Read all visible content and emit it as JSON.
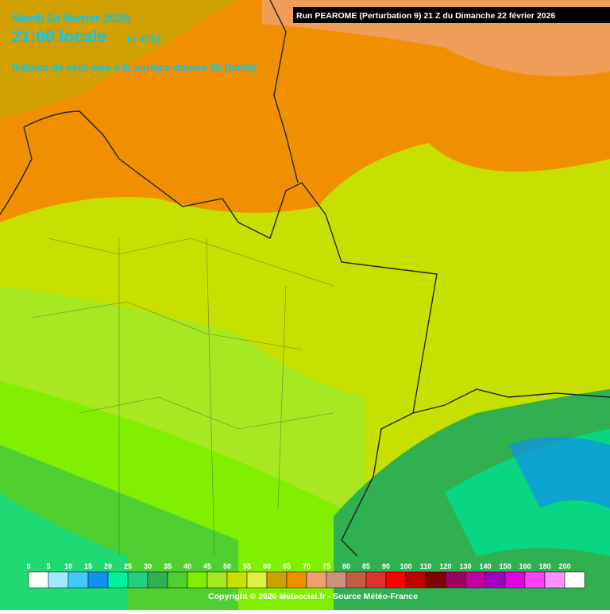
{
  "header": {
    "date": "Mardi 24 février 2026",
    "time": "21:00 locale",
    "offset": "(+ 47h)",
    "subtitle": "Rafales de vent max à la surface depuis 0h (km/h)",
    "run": "Run PEAROME (Perturbation 9) 21 Z du Dimanche 22 février 2026"
  },
  "legend": {
    "items": [
      {
        "label": 0,
        "color": "#ffffff"
      },
      {
        "label": 5,
        "color": "#a0e8ff"
      },
      {
        "label": 10,
        "color": "#40c8ff"
      },
      {
        "label": 15,
        "color": "#1090f0"
      },
      {
        "label": 20,
        "color": "#00f0a0"
      },
      {
        "label": 25,
        "color": "#20d080"
      },
      {
        "label": 30,
        "color": "#30b050"
      },
      {
        "label": 35,
        "color": "#50d030"
      },
      {
        "label": 40,
        "color": "#80f000"
      },
      {
        "label": 45,
        "color": "#a8e820"
      },
      {
        "label": 50,
        "color": "#c8e000"
      },
      {
        "label": 55,
        "color": "#e0f040"
      },
      {
        "label": 60,
        "color": "#d0a000"
      },
      {
        "label": 65,
        "color": "#f09000"
      },
      {
        "label": 70,
        "color": "#f0a070"
      },
      {
        "label": 75,
        "color": "#d09080"
      },
      {
        "label": 80,
        "color": "#c06040"
      },
      {
        "label": 85,
        "color": "#e03030"
      },
      {
        "label": 90,
        "color": "#ff0000"
      },
      {
        "label": 100,
        "color": "#c00000"
      },
      {
        "label": 110,
        "color": "#800000"
      },
      {
        "label": 120,
        "color": "#a00060"
      },
      {
        "label": 130,
        "color": "#c000a0"
      },
      {
        "label": 140,
        "color": "#a000c0"
      },
      {
        "label": 150,
        "color": "#e000e0"
      },
      {
        "label": 160,
        "color": "#ff40ff"
      },
      {
        "label": 180,
        "color": "#ff90ff"
      },
      {
        "label": 200,
        "color": "#ffffff"
      }
    ]
  },
  "footer": {
    "copyright": "Copyright © 2026 Meteociel.fr - Source Météo-France"
  }
}
